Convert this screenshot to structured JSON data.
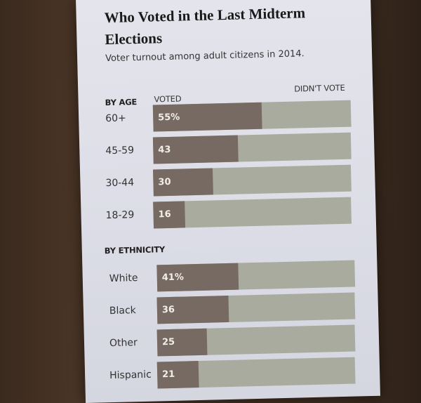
{
  "title": "Who Voted in the Last Midterm Elections",
  "subtitle": "Voter turnout among adult citizens in 2014.",
  "colors": {
    "voted": "#776a63",
    "didnt_vote": "#a9ab9f"
  },
  "headers": {
    "by_age": "BY AGE",
    "voted": "VOTED",
    "didnt_vote": "DIDN'T VOTE",
    "by_ethnicity": "BY ETHNICITY"
  },
  "chart_data": [
    {
      "type": "bar",
      "title": "BY AGE",
      "categories": [
        "60+",
        "45-59",
        "30-44",
        "18-29"
      ],
      "values": [
        55,
        43,
        30,
        16
      ],
      "value_labels": [
        "55%",
        "43",
        "30",
        "16"
      ],
      "series": [
        {
          "name": "VOTED",
          "values": [
            55,
            43,
            30,
            16
          ]
        },
        {
          "name": "DIDN'T VOTE",
          "values": [
            45,
            57,
            70,
            84
          ]
        }
      ],
      "xlim": [
        0,
        100
      ]
    },
    {
      "type": "bar",
      "title": "BY ETHNICITY",
      "categories": [
        "White",
        "Black",
        "Other",
        "Hispanic"
      ],
      "values": [
        41,
        36,
        25,
        21
      ],
      "value_labels": [
        "41%",
        "36",
        "25",
        "21"
      ],
      "series": [
        {
          "name": "VOTED",
          "values": [
            41,
            36,
            25,
            21
          ]
        },
        {
          "name": "DIDN'T VOTE",
          "values": [
            59,
            64,
            75,
            79
          ]
        }
      ],
      "xlim": [
        0,
        100
      ]
    }
  ]
}
